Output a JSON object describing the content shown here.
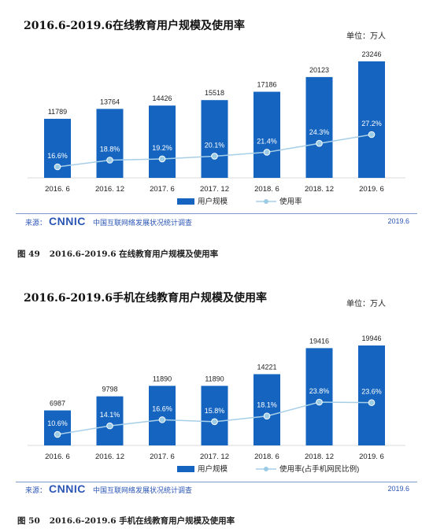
{
  "chart_data": [
    {
      "type": "bar",
      "title": "2016.6-2019.6在线教育用户规模及使用率",
      "unit": "单位：万人",
      "categories": [
        "2016. 6",
        "2016. 12",
        "2017. 6",
        "2017. 12",
        "2018. 6",
        "2018. 12",
        "2019. 6"
      ],
      "series": [
        {
          "name": "用户规模",
          "type": "bar",
          "values": [
            11789,
            13764,
            14426,
            15518,
            17186,
            20123,
            23246
          ]
        },
        {
          "name": "使用率",
          "type": "line",
          "values": [
            16.6,
            18.8,
            19.2,
            20.1,
            21.4,
            24.3,
            27.2
          ],
          "labels": [
            "16.6%",
            "18.8%",
            "19.2%",
            "20.1%",
            "21.4%",
            "24.3%",
            "27.2%"
          ]
        }
      ],
      "legend_position": "bottom",
      "colors": {
        "bar": "#1565c0",
        "line": "#a7cfe8",
        "marker": "#9ccbe6"
      }
    },
    {
      "type": "bar",
      "title": "2016.6-2019.6手机在线教育用户规模及使用率",
      "unit": "单位：万人",
      "categories": [
        "2016. 6",
        "2016. 12",
        "2017. 6",
        "2017. 12",
        "2018. 6",
        "2018. 12",
        "2019. 6"
      ],
      "series": [
        {
          "name": "用户规模",
          "type": "bar",
          "values": [
            6987,
            9798,
            11890,
            11890,
            14221,
            19416,
            19946
          ]
        },
        {
          "name": "使用率(占手机网民比例)",
          "type": "line",
          "values": [
            10.6,
            14.1,
            16.6,
            15.8,
            18.1,
            23.8,
            23.6
          ],
          "labels": [
            "10.6%",
            "14.1%",
            "16.6%",
            "15.8%",
            "18.1%",
            "23.8%",
            "23.6%"
          ]
        }
      ],
      "legend_position": "bottom",
      "colors": {
        "bar": "#1565c0",
        "line": "#a7cfe8",
        "marker": "#9ccbe6"
      }
    }
  ],
  "footer": {
    "source_label": "来源：",
    "logo": "CNNIC",
    "org": "中国互联网络发展状况统计调查",
    "date": "2019.6"
  },
  "captions": [
    {
      "num": "图 49",
      "text": "2016.6-2019.6 在线教育用户规模及使用率"
    },
    {
      "num": "图 50",
      "text": "2016.6-2019.6 手机在线教育用户规模及使用率"
    }
  ]
}
